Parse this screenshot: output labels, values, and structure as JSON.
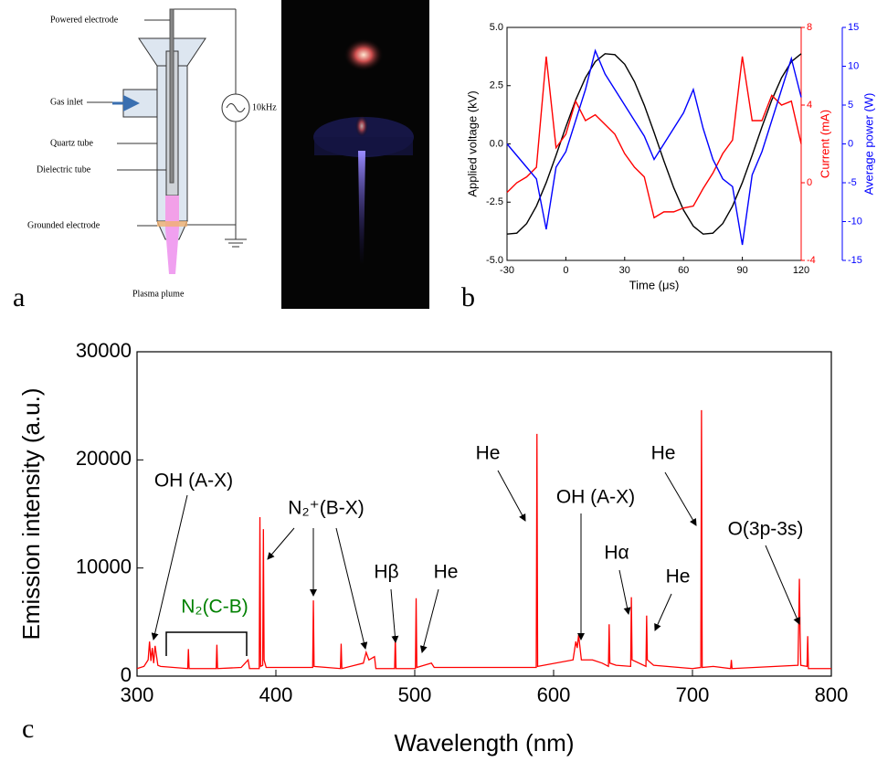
{
  "diagram": {
    "letter": "a",
    "powered_electrode": "Powered electrode",
    "gas_inlet": "Gas inlet",
    "quartz_tube": "Quartz tube",
    "dielectric_tube": "Dielectric tube",
    "grounded_electrode": "Grounded electrode",
    "plasma_plume": "Plasma plume",
    "frequency": "10kHz"
  },
  "chart_data": [
    {
      "type": "line",
      "letter": "b",
      "x_label": "Time (μs)",
      "y_label": "Applied voltage (kV)",
      "y2_label": "Current (mA)",
      "y3_label": "Average power (W)",
      "x": [
        -30,
        -25,
        -20,
        -15,
        -10,
        -5,
        0,
        5,
        10,
        15,
        20,
        25,
        30,
        35,
        40,
        45,
        50,
        55,
        60,
        65,
        70,
        75,
        80,
        85,
        90,
        95,
        100,
        105,
        110,
        115,
        120
      ],
      "xlim": [
        -30,
        120
      ],
      "xticks": [
        -30,
        0,
        30,
        60,
        90,
        120
      ],
      "ylim": [
        -5,
        5
      ],
      "yticks": [
        {
          "value": -5,
          "label": "-5.0"
        },
        -2.5,
        {
          "value": 0,
          "label": "0.0"
        },
        2.5,
        {
          "value": 5,
          "label": "5.0"
        }
      ],
      "y2lim": [
        -4,
        8
      ],
      "y2ticks": [
        -4,
        0,
        4,
        8
      ],
      "y2color": "#ff0000",
      "y3lim": [
        -15,
        15
      ],
      "y3ticks": [
        -15,
        -10,
        -5,
        0,
        5,
        10,
        15
      ],
      "y3color": "#0000ff",
      "series": [
        {
          "color": "#000000",
          "values": [
            -3.87,
            -3.83,
            -3.42,
            -2.67,
            -1.66,
            -0.49,
            0.73,
            1.88,
            2.84,
            3.53,
            3.87,
            3.83,
            3.42,
            2.67,
            1.66,
            0.49,
            -0.73,
            -1.88,
            -2.84,
            -3.53,
            -3.87,
            -3.83,
            -3.42,
            -2.67,
            -1.66,
            -0.49,
            0.73,
            1.88,
            2.84,
            3.53,
            3.87
          ]
        },
        {
          "color": "#ff0000",
          "axis": "y2",
          "values": [
            -0.5,
            0,
            0.3,
            0.8,
            6.5,
            1.8,
            2.5,
            4.2,
            3.2,
            3.5,
            3.0,
            2.5,
            1.5,
            0.8,
            0.3,
            -1.8,
            -1.5,
            -1.5,
            -1.3,
            -1.2,
            -0.3,
            0.5,
            1.5,
            2.2,
            6.5,
            3.2,
            3.2,
            4.5,
            4.0,
            4.2,
            2.0
          ]
        },
        {
          "color": "#0000ff",
          "axis": "y3",
          "values": [
            0,
            -1.5,
            -3,
            -4.5,
            -11,
            -3,
            -1,
            3,
            7,
            12,
            9,
            7,
            5,
            3,
            1,
            -2,
            0,
            2,
            4,
            7,
            2,
            -2,
            -4.5,
            -5.5,
            -13,
            -4,
            -1,
            3,
            7,
            11,
            6
          ]
        }
      ]
    },
    {
      "type": "line",
      "letter": "c",
      "x_label": "Wavelength (nm)",
      "y_label": "Emission intensity (a.u.)",
      "color": "#ff0000",
      "xlim": [
        300,
        800
      ],
      "xticks": [
        300,
        400,
        500,
        600,
        700,
        800
      ],
      "ylim": [
        0,
        30000
      ],
      "yticks": [
        0,
        10000,
        20000,
        30000
      ],
      "x": [
        300,
        305,
        308,
        309,
        310,
        311,
        312,
        313,
        315,
        317,
        336.5,
        337,
        337.5,
        357,
        357.5,
        358,
        375,
        380,
        381,
        388,
        388.5,
        389,
        390.5,
        391,
        391.5,
        393,
        426.5,
        427,
        427.5,
        446.5,
        447,
        447.5,
        463,
        465,
        467,
        471,
        472,
        485.5,
        486,
        486.5,
        500.5,
        501,
        501.5,
        512,
        514,
        587.5,
        588,
        588.5,
        614,
        616,
        617,
        618,
        620,
        628,
        635,
        639.5,
        640,
        640.5,
        645,
        655.5,
        656,
        656.5,
        666.5,
        667,
        667.5,
        672,
        700,
        706,
        706.5,
        707,
        715,
        727.5,
        728,
        728.5,
        776,
        777,
        777.5,
        778,
        782.5,
        783,
        783.5,
        800
      ],
      "values": [
        700,
        900,
        1500,
        3200,
        1400,
        2600,
        1200,
        2800,
        1000,
        900,
        700,
        2500,
        700,
        700,
        2900,
        700,
        800,
        1500,
        700,
        700,
        14700,
        900,
        1000,
        13600,
        1500,
        800,
        800,
        7000,
        900,
        700,
        3000,
        700,
        1200,
        2200,
        1500,
        1800,
        700,
        700,
        3600,
        700,
        700,
        7200,
        800,
        1200,
        800,
        800,
        22400,
        900,
        1500,
        3200,
        2600,
        3800,
        1500,
        1500,
        1200,
        900,
        4800,
        1200,
        1000,
        900,
        7300,
        1500,
        900,
        5600,
        1500,
        1000,
        700,
        800,
        24600,
        800,
        900,
        700,
        1500,
        700,
        1000,
        9000,
        4000,
        1000,
        900,
        3700,
        700,
        700
      ],
      "annotations": [
        {
          "text": "OH (A-X)",
          "color": "#000000"
        },
        {
          "text": "N₂(C-B)",
          "color": "#008000"
        },
        {
          "text": "N₂⁺(B-X)",
          "color": "#000000"
        },
        {
          "text": "Hβ",
          "color": "#000000"
        },
        {
          "text": "He",
          "color": "#000000"
        },
        {
          "text": "He",
          "color": "#000000"
        },
        {
          "text": "OH (A-X)",
          "color": "#000000"
        },
        {
          "text": "Hα",
          "color": "#000000"
        },
        {
          "text": "He",
          "color": "#000000"
        },
        {
          "text": "He",
          "color": "#000000"
        },
        {
          "text": "O(3p-3s)",
          "color": "#000000"
        }
      ]
    }
  ]
}
